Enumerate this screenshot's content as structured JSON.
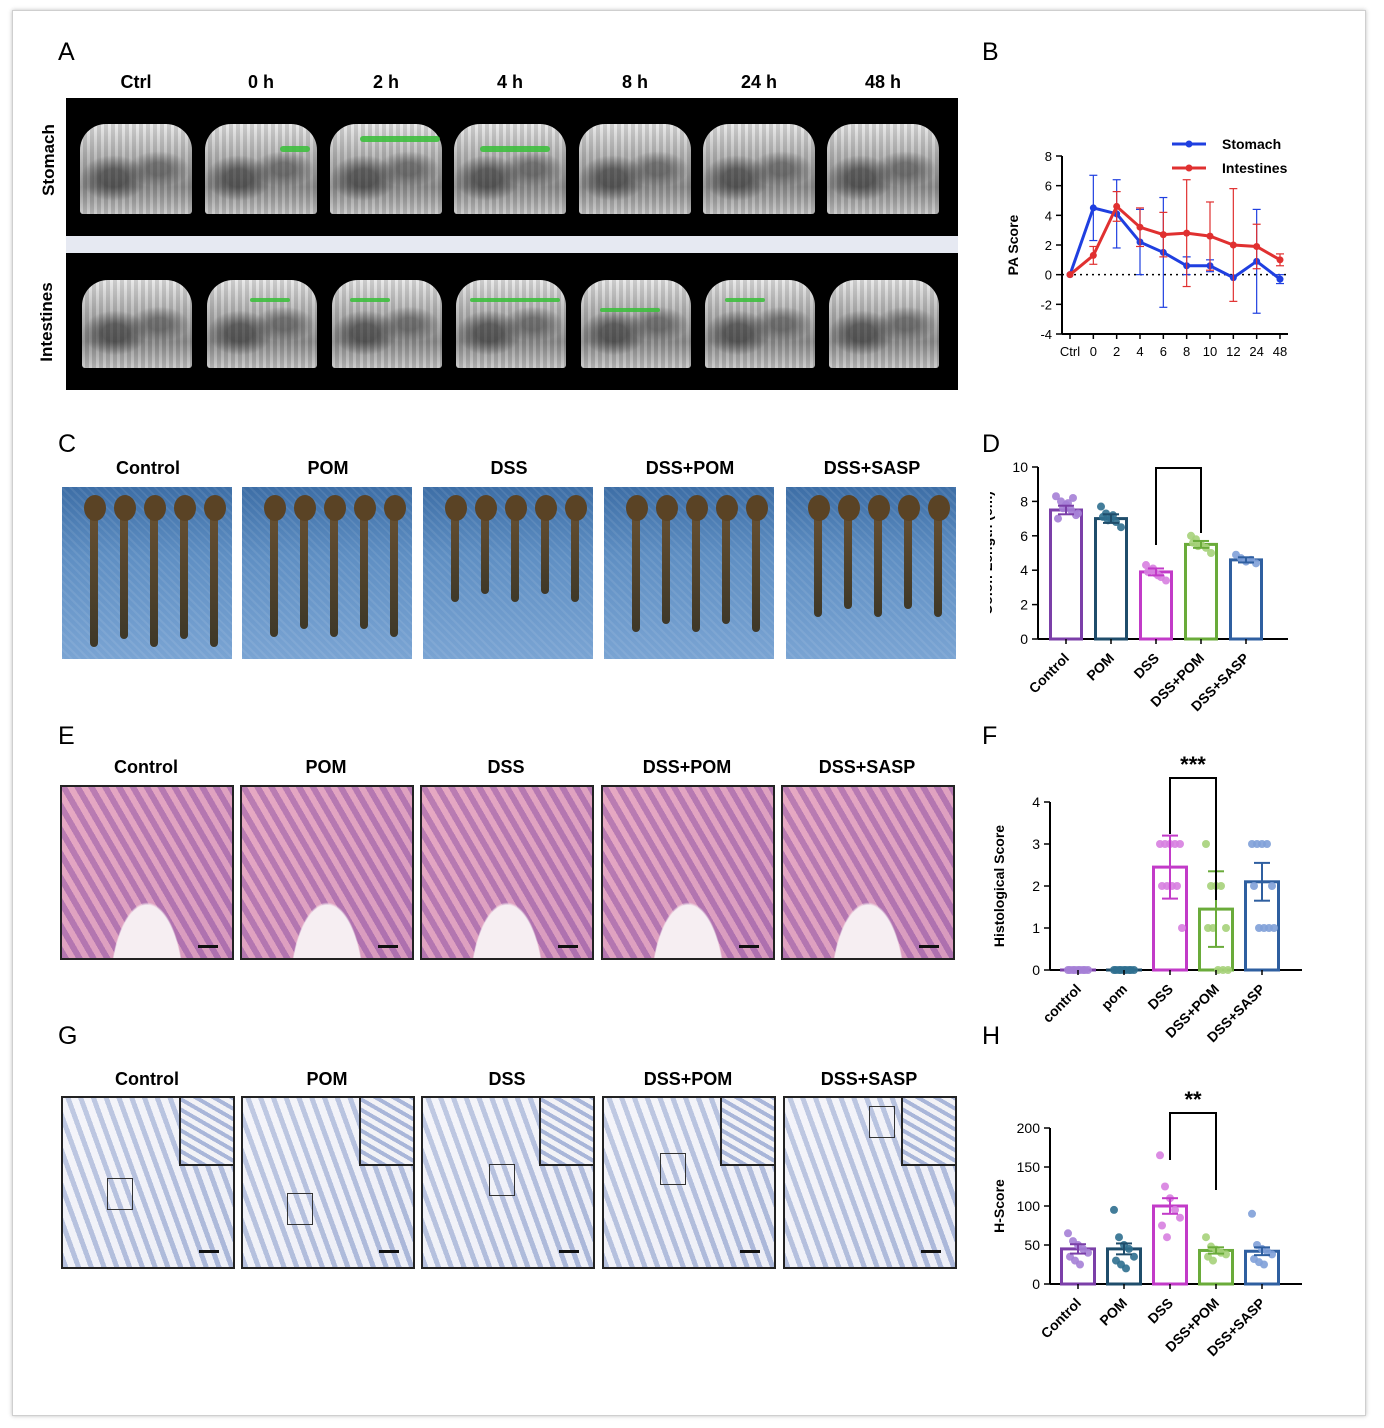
{
  "panels": {
    "A": {
      "letter": "A",
      "timepoints": [
        "Ctrl",
        "0 h",
        "2 h",
        "4 h",
        "8 h",
        "24 h",
        "48 h"
      ],
      "rows": [
        "Stomach",
        "Intestines"
      ]
    },
    "B": {
      "letter": "B"
    },
    "C": {
      "letter": "C",
      "groups": [
        "Control",
        "POM",
        "DSS",
        "DSS+POM",
        "DSS+SASP"
      ]
    },
    "D": {
      "letter": "D"
    },
    "E": {
      "letter": "E",
      "groups": [
        "Control",
        "POM",
        "DSS",
        "DSS+POM",
        "DSS+SASP"
      ]
    },
    "F": {
      "letter": "F"
    },
    "G": {
      "letter": "G",
      "groups": [
        "Control",
        "POM",
        "DSS",
        "DSS+POM",
        "DSS+SASP"
      ]
    },
    "H": {
      "letter": "H"
    }
  },
  "colors": {
    "stomach": "#1f3fe0",
    "intestines": "#e03030",
    "control": "#7b3fa8",
    "pom": "#1f4d6b",
    "dss": "#c23bc8",
    "dss_pom": "#6aab3a",
    "dss_sasp": "#2f5fa0",
    "control_dot": "#a57fd6",
    "pom_dot": "#2f6f8f",
    "dss_dot": "#d77fe0",
    "dss_pom_dot": "#a6d27a",
    "dss_sasp_dot": "#7fa0d8"
  },
  "chart_data": [
    {
      "id": "B",
      "type": "line",
      "ylabel": "PA Score",
      "xlabel": "",
      "categories": [
        "Ctrl",
        "0",
        "2",
        "4",
        "6",
        "8",
        "10",
        "12",
        "24",
        "48"
      ],
      "ylim": [
        -4,
        8
      ],
      "yticks": [
        -4,
        -2,
        0,
        2,
        4,
        6,
        8
      ],
      "reference_line": 0,
      "legend": "top-right",
      "series": [
        {
          "name": "Stomach",
          "values": [
            0,
            4.5,
            4.1,
            2.2,
            1.5,
            0.6,
            0.6,
            -0.2,
            0.9,
            -0.3
          ],
          "errors": [
            0,
            2.2,
            2.3,
            2.2,
            3.7,
            0.6,
            0.4,
            0,
            3.5,
            0.3
          ]
        },
        {
          "name": "Intestines",
          "values": [
            0,
            1.3,
            4.6,
            3.2,
            2.7,
            2.8,
            2.6,
            2.0,
            1.9,
            1.0
          ],
          "errors": [
            0,
            0.6,
            1.0,
            1.3,
            1.5,
            3.6,
            2.3,
            3.8,
            1.5,
            0.4
          ]
        }
      ]
    },
    {
      "id": "D",
      "type": "bar",
      "ylabel": "Colon Length (cm)",
      "categories": [
        "Control",
        "POM",
        "DSS",
        "DSS+POM",
        "DSS+SASP"
      ],
      "values": [
        7.5,
        7.0,
        3.9,
        5.5,
        4.6
      ],
      "errors": [
        0.25,
        0.25,
        0.2,
        0.2,
        0.15
      ],
      "ylim": [
        0,
        10
      ],
      "yticks": [
        0,
        2,
        4,
        6,
        8,
        10
      ],
      "points": [
        [
          8.3,
          8.0,
          7.8,
          7.5,
          7.2,
          7.0,
          7.6,
          7.9,
          8.2,
          7.3
        ],
        [
          7.7,
          7.3,
          7.0,
          6.8,
          6.5,
          7.1,
          6.9,
          7.2
        ],
        [
          4.3,
          4.0,
          3.8,
          3.6,
          3.4,
          3.9,
          4.1,
          3.7
        ],
        [
          6.0,
          5.8,
          5.5,
          5.3,
          5.0,
          5.6,
          5.4
        ],
        [
          4.9,
          4.7,
          4.5,
          4.6,
          4.4
        ]
      ],
      "significance": {
        "from": 2,
        "to": 3,
        "label": "****"
      }
    },
    {
      "id": "F",
      "type": "bar",
      "ylabel": "Histological Score",
      "categories": [
        "control",
        "pom",
        "DSS",
        "DSS+POM",
        "DSS+SASP"
      ],
      "values": [
        0,
        0,
        2.45,
        1.45,
        2.1
      ],
      "errors": [
        0,
        0,
        0.75,
        0.9,
        0.45
      ],
      "ylim": [
        0,
        4
      ],
      "yticks": [
        0,
        1,
        2,
        3,
        4
      ],
      "points": [
        [
          0,
          0,
          0,
          0,
          0,
          0,
          0,
          0,
          0
        ],
        [
          0,
          0,
          0,
          0,
          0,
          0,
          0,
          0,
          0
        ],
        [
          3,
          3,
          3,
          3,
          3,
          2,
          2,
          2,
          2,
          1
        ],
        [
          3,
          2,
          2,
          2,
          1,
          1,
          1,
          0,
          0,
          0
        ],
        [
          3,
          3,
          3,
          3,
          2,
          2,
          1,
          1,
          1,
          1
        ]
      ],
      "significance": {
        "from": 2,
        "to": 3,
        "label": "***"
      }
    },
    {
      "id": "H",
      "type": "bar",
      "ylabel": "H-Score",
      "categories": [
        "Control",
        "POM",
        "DSS",
        "DSS+POM",
        "DSS+SASP"
      ],
      "values": [
        45,
        45,
        100,
        43,
        42
      ],
      "errors": [
        6,
        7,
        10,
        4,
        5
      ],
      "ylim": [
        0,
        200
      ],
      "yticks": [
        0,
        50,
        100,
        150,
        200
      ],
      "points": [
        [
          65,
          55,
          50,
          45,
          40,
          35,
          30,
          25
        ],
        [
          95,
          60,
          50,
          45,
          35,
          30,
          25,
          20
        ],
        [
          165,
          125,
          110,
          95,
          85,
          75,
          60
        ],
        [
          60,
          48,
          44,
          40,
          38,
          35,
          30
        ],
        [
          90,
          50,
          45,
          42,
          38,
          32,
          28,
          25
        ]
      ],
      "significance": {
        "from": 2,
        "to": 3,
        "label": "**"
      }
    }
  ]
}
